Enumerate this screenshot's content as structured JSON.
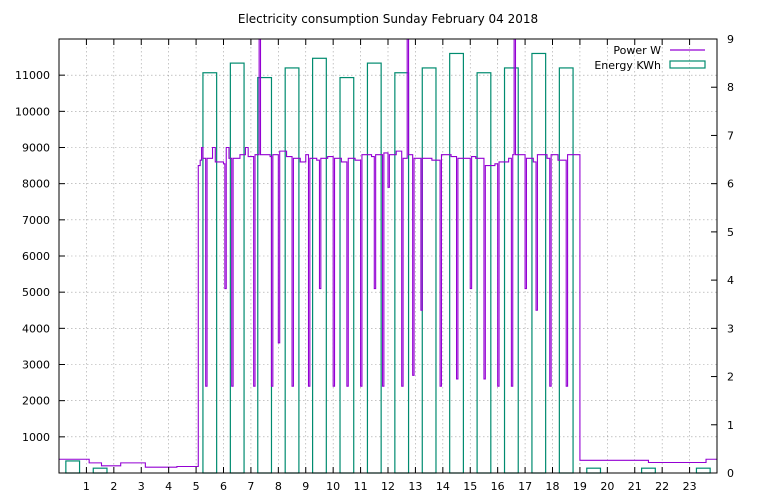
{
  "chart_data": {
    "type": "line",
    "title": "Electricity consumption Sunday February 04 2018",
    "xlabel": "",
    "ylabel": "",
    "y2label": "",
    "xlim": [
      0,
      24
    ],
    "ylim": [
      0,
      12000
    ],
    "y2lim": [
      0,
      9
    ],
    "xticks": [
      "1",
      "2",
      "3",
      "4",
      "5",
      "6",
      "7",
      "8",
      "9",
      "10",
      "11",
      "12",
      "13",
      "14",
      "15",
      "16",
      "17",
      "18",
      "19",
      "20",
      "21",
      "22",
      "23"
    ],
    "yticks": [
      "1000",
      "2000",
      "3000",
      "4000",
      "5000",
      "6000",
      "7000",
      "8000",
      "9000",
      "10000",
      "11000"
    ],
    "y2ticks": [
      "0",
      "1",
      "2",
      "3",
      "4",
      "5",
      "6",
      "7",
      "8",
      "9"
    ],
    "grid": true,
    "legend_position": "top-right",
    "series": [
      {
        "name": "Power W",
        "axis": "y",
        "color": "#9400d3",
        "style": "step",
        "points": [
          [
            0,
            380
          ],
          [
            1,
            380
          ],
          [
            1.1,
            280
          ],
          [
            1.5,
            280
          ],
          [
            1.55,
            200
          ],
          [
            2.2,
            200
          ],
          [
            2.25,
            280
          ],
          [
            3.1,
            280
          ],
          [
            3.15,
            160
          ],
          [
            4.2,
            160
          ],
          [
            4.3,
            180
          ],
          [
            5.05,
            180
          ],
          [
            5.08,
            8500
          ],
          [
            5.15,
            8650
          ],
          [
            5.2,
            9000
          ],
          [
            5.25,
            8700
          ],
          [
            5.35,
            2400
          ],
          [
            5.4,
            8700
          ],
          [
            5.6,
            9000
          ],
          [
            5.7,
            8600
          ],
          [
            6.0,
            8550
          ],
          [
            6.05,
            5100
          ],
          [
            6.1,
            9000
          ],
          [
            6.2,
            8700
          ],
          [
            6.3,
            2400
          ],
          [
            6.35,
            8700
          ],
          [
            6.6,
            8800
          ],
          [
            6.8,
            9000
          ],
          [
            6.9,
            8750
          ],
          [
            7.1,
            2400
          ],
          [
            7.15,
            8800
          ],
          [
            7.3,
            12000
          ],
          [
            7.35,
            8800
          ],
          [
            7.7,
            8750
          ],
          [
            7.75,
            2400
          ],
          [
            7.8,
            8800
          ],
          [
            8.0,
            3600
          ],
          [
            8.05,
            8900
          ],
          [
            8.3,
            8750
          ],
          [
            8.5,
            2400
          ],
          [
            8.55,
            8700
          ],
          [
            8.8,
            8600
          ],
          [
            9.0,
            8800
          ],
          [
            9.1,
            2400
          ],
          [
            9.15,
            8700
          ],
          [
            9.4,
            8650
          ],
          [
            9.5,
            5100
          ],
          [
            9.55,
            8700
          ],
          [
            9.8,
            8750
          ],
          [
            10.0,
            2400
          ],
          [
            10.05,
            8700
          ],
          [
            10.3,
            8600
          ],
          [
            10.5,
            2400
          ],
          [
            10.55,
            8700
          ],
          [
            10.8,
            8650
          ],
          [
            11.0,
            2400
          ],
          [
            11.05,
            8800
          ],
          [
            11.4,
            8750
          ],
          [
            11.5,
            5100
          ],
          [
            11.55,
            8800
          ],
          [
            11.8,
            2400
          ],
          [
            11.85,
            8850
          ],
          [
            12.0,
            7900
          ],
          [
            12.05,
            8800
          ],
          [
            12.3,
            8900
          ],
          [
            12.5,
            2400
          ],
          [
            12.55,
            8700
          ],
          [
            12.7,
            12000
          ],
          [
            12.75,
            8800
          ],
          [
            12.9,
            2700
          ],
          [
            12.95,
            8700
          ],
          [
            13.2,
            4500
          ],
          [
            13.25,
            8700
          ],
          [
            13.6,
            8650
          ],
          [
            13.9,
            2400
          ],
          [
            13.95,
            8800
          ],
          [
            14.3,
            8750
          ],
          [
            14.5,
            2600
          ],
          [
            14.55,
            8700
          ],
          [
            15.0,
            5100
          ],
          [
            15.05,
            8750
          ],
          [
            15.2,
            8700
          ],
          [
            15.5,
            2600
          ],
          [
            15.55,
            8500
          ],
          [
            15.9,
            8550
          ],
          [
            16.0,
            2400
          ],
          [
            16.05,
            8600
          ],
          [
            16.4,
            8700
          ],
          [
            16.5,
            2400
          ],
          [
            16.55,
            8800
          ],
          [
            16.6,
            12000
          ],
          [
            16.65,
            8800
          ],
          [
            17.0,
            5100
          ],
          [
            17.05,
            8700
          ],
          [
            17.3,
            8600
          ],
          [
            17.4,
            4500
          ],
          [
            17.45,
            8800
          ],
          [
            17.8,
            8700
          ],
          [
            17.9,
            2400
          ],
          [
            17.95,
            8800
          ],
          [
            18.2,
            8650
          ],
          [
            18.5,
            2400
          ],
          [
            18.55,
            8800
          ],
          [
            18.95,
            8800
          ],
          [
            19.0,
            350
          ],
          [
            20.5,
            350
          ],
          [
            21.0,
            350
          ],
          [
            21.5,
            290
          ],
          [
            23.5,
            290
          ],
          [
            23.6,
            380
          ],
          [
            24,
            380
          ]
        ]
      },
      {
        "name": "Energy KWh",
        "axis": "y2",
        "color": "#008b6f",
        "style": "boxes",
        "x": [
          0,
          1,
          5,
          6,
          7,
          8,
          9,
          10,
          11,
          12,
          13,
          14,
          15,
          16,
          17,
          18,
          19,
          21,
          23
        ],
        "values": [
          0.25,
          0.1,
          8.3,
          8.5,
          8.2,
          8.4,
          8.6,
          8.2,
          8.5,
          8.3,
          8.4,
          8.7,
          8.3,
          8.4,
          8.7,
          8.4,
          0.1,
          0.1,
          0.1
        ]
      }
    ]
  }
}
